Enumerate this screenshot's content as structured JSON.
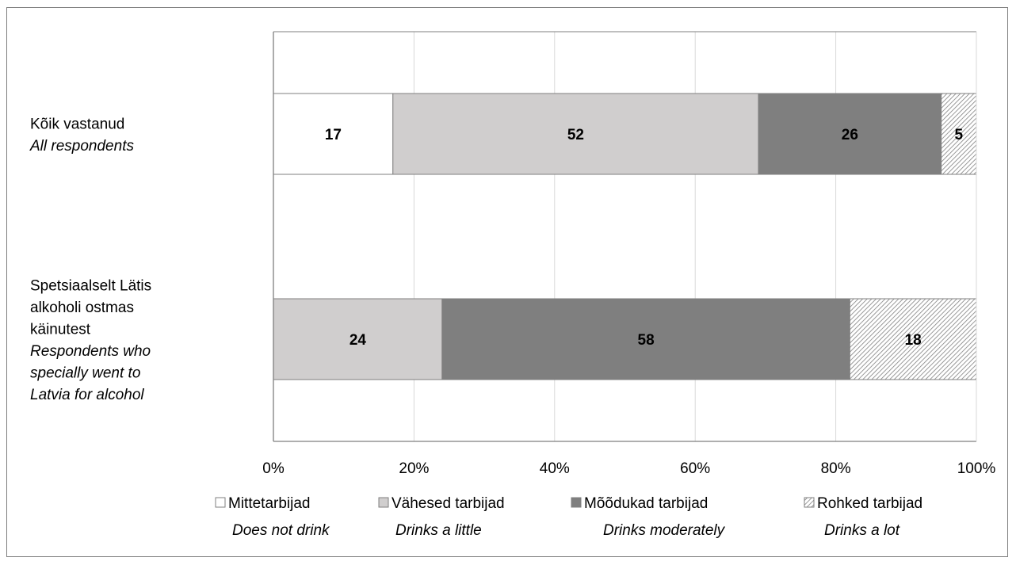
{
  "chart_data": {
    "type": "bar",
    "orientation": "horizontal",
    "stacked": true,
    "percent_stacked": true,
    "categories": [
      {
        "lines": [
          "Kõik vastanud"
        ],
        "italic_lines": [
          "All respondents"
        ]
      },
      {
        "lines": [
          "Spetsiaalselt Lätis",
          "alkoholi ostmas",
          "käinutest"
        ],
        "italic_lines": [
          "Respondents who",
          "specially went to",
          "Latvia for alcohol"
        ]
      }
    ],
    "series": [
      {
        "name": "Mittetarbijad",
        "subtitle": "Does not drink",
        "values": [
          17,
          0
        ],
        "color": "#ffffff",
        "pattern": "none"
      },
      {
        "name": "Vähesed tarbijad",
        "subtitle": "Drinks a little",
        "values": [
          52,
          24
        ],
        "color": "#d0cece",
        "pattern": "none"
      },
      {
        "name": "Mõõdukad tarbijad",
        "subtitle": "Drinks moderately",
        "values": [
          26,
          58
        ],
        "color": "#7f7f7f",
        "pattern": "none"
      },
      {
        "name": "Rohked tarbijad",
        "subtitle": "Drinks a lot",
        "values": [
          5,
          18
        ],
        "color": "#ffffff",
        "pattern": "diagonal-hatch"
      }
    ],
    "x_ticks": [
      "0%",
      "20%",
      "40%",
      "60%",
      "80%",
      "100%"
    ],
    "xlim": [
      0,
      100
    ],
    "grid": true,
    "legend_position": "bottom"
  }
}
